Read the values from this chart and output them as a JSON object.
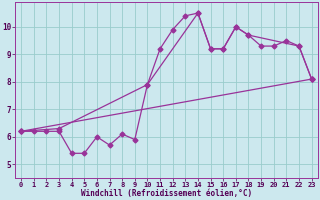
{
  "xlabel": "Windchill (Refroidissement éolien,°C)",
  "bg_color": "#cce8ee",
  "grid_color": "#99cccc",
  "line_color": "#993399",
  "xlim": [
    -0.5,
    23.5
  ],
  "ylim": [
    4.5,
    10.9
  ],
  "xticks": [
    0,
    1,
    2,
    3,
    4,
    5,
    6,
    7,
    8,
    9,
    10,
    11,
    12,
    13,
    14,
    15,
    16,
    17,
    18,
    19,
    20,
    21,
    22,
    23
  ],
  "yticks": [
    5,
    6,
    7,
    8,
    9,
    10
  ],
  "line1_x": [
    0,
    1,
    2,
    3,
    4,
    5,
    6,
    7,
    8,
    9,
    10,
    11,
    12,
    13,
    14,
    15,
    16,
    17,
    18,
    19,
    20,
    21,
    22,
    23
  ],
  "line1_y": [
    6.2,
    6.2,
    6.2,
    6.2,
    5.4,
    5.4,
    6.0,
    5.7,
    6.1,
    5.9,
    7.9,
    9.2,
    9.9,
    10.4,
    10.5,
    9.2,
    9.2,
    10.0,
    9.7,
    9.3,
    9.3,
    9.5,
    9.3,
    8.1
  ],
  "line2_x": [
    0,
    3,
    10,
    14,
    15,
    16,
    17,
    18,
    22,
    23
  ],
  "line2_y": [
    6.2,
    6.3,
    7.9,
    10.5,
    9.2,
    9.2,
    10.0,
    9.7,
    9.3,
    8.1
  ],
  "line3_x": [
    0,
    23
  ],
  "line3_y": [
    6.2,
    8.1
  ],
  "markersize": 2.5,
  "linewidth": 0.9,
  "tick_fontsize": 5.0,
  "xlabel_fontsize": 5.5
}
